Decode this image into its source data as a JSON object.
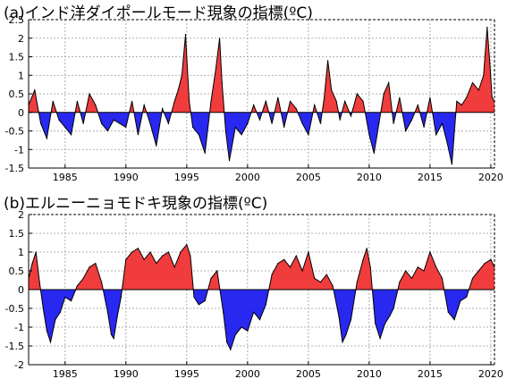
{
  "chart_data": [
    {
      "type": "area",
      "title": "(a)インド洋ダイポールモード現象の指標(ºC)",
      "xlabel": "",
      "ylabel": "",
      "xlim": [
        1982,
        2020.3
      ],
      "ylim": [
        -1.5,
        2.5
      ],
      "yticks": [
        "-1.5",
        "-1",
        "-0.5",
        "0",
        "0.5",
        "1",
        "1.5",
        "2",
        "2.5"
      ],
      "xticks": [
        "1985",
        "1990",
        "1995",
        "2000",
        "2005",
        "2010",
        "2015",
        "2020"
      ],
      "grid": true,
      "positive_color": "#f03c3c",
      "negative_color": "#2828f0",
      "x": [
        1982.0,
        1982.5,
        1983.0,
        1983.5,
        1984.0,
        1984.5,
        1985.0,
        1985.5,
        1986.0,
        1986.5,
        1987.0,
        1987.5,
        1988.0,
        1988.5,
        1989.0,
        1989.5,
        1990.0,
        1990.5,
        1991.0,
        1991.5,
        1992.0,
        1992.5,
        1993.0,
        1993.5,
        1994.0,
        1994.3,
        1994.6,
        1994.9,
        1995.2,
        1995.5,
        1996.0,
        1996.5,
        1997.0,
        1997.4,
        1997.7,
        1997.9,
        1998.2,
        1998.5,
        1999.0,
        1999.5,
        2000.0,
        2000.5,
        2001.0,
        2001.5,
        2002.0,
        2002.5,
        2003.0,
        2003.5,
        2004.0,
        2004.5,
        2005.0,
        2005.5,
        2006.0,
        2006.3,
        2006.6,
        2006.9,
        2007.3,
        2007.6,
        2008.0,
        2008.5,
        2009.0,
        2009.5,
        2010.0,
        2010.4,
        2010.8,
        2011.2,
        2011.6,
        2012.0,
        2012.5,
        2013.0,
        2013.5,
        2014.0,
        2014.5,
        2015.0,
        2015.5,
        2016.0,
        2016.4,
        2016.8,
        2017.2,
        2017.6,
        2018.0,
        2018.5,
        2019.0,
        2019.4,
        2019.7,
        2019.9,
        2020.1,
        2020.3
      ],
      "values": [
        0.2,
        0.6,
        -0.3,
        -0.7,
        0.3,
        -0.2,
        -0.4,
        -0.6,
        0.3,
        -0.3,
        0.5,
        0.2,
        -0.3,
        -0.5,
        -0.2,
        -0.3,
        -0.4,
        0.3,
        -0.6,
        0.2,
        -0.3,
        -0.9,
        0.1,
        -0.3,
        0.3,
        0.6,
        1.0,
        2.1,
        0.3,
        -0.4,
        -0.6,
        -1.1,
        0.3,
        1.2,
        2.0,
        0.8,
        -0.5,
        -1.3,
        -0.4,
        -0.6,
        -0.3,
        0.2,
        -0.2,
        0.3,
        -0.3,
        0.4,
        -0.4,
        0.3,
        0.1,
        -0.3,
        -0.6,
        0.2,
        -0.3,
        0.4,
        1.4,
        0.6,
        0.3,
        -0.2,
        0.3,
        -0.1,
        0.5,
        0.3,
        -0.6,
        -1.1,
        -0.3,
        0.5,
        0.8,
        -0.3,
        0.4,
        -0.5,
        -0.2,
        0.2,
        -0.4,
        0.4,
        -0.6,
        -0.3,
        -0.8,
        -1.4,
        0.3,
        0.2,
        0.4,
        0.8,
        0.6,
        1.0,
        2.3,
        1.4,
        0.4,
        0.3
      ]
    },
    {
      "type": "area",
      "title": "(b)エルニーニョモドキ現象の指標(ºC)",
      "xlabel": "",
      "ylabel": "",
      "xlim": [
        1982,
        2020.3
      ],
      "ylim": [
        -2,
        2
      ],
      "yticks": [
        "-2",
        "-1.5",
        "-1",
        "-0.5",
        "0",
        "0.5",
        "1",
        "1.5",
        "2"
      ],
      "xticks": [
        "1985",
        "1990",
        "1995",
        "2000",
        "2005",
        "2010",
        "2015",
        "2020"
      ],
      "grid": true,
      "positive_color": "#f03c3c",
      "negative_color": "#2828f0",
      "x": [
        1982.0,
        1982.3,
        1982.6,
        1982.9,
        1983.2,
        1983.5,
        1983.8,
        1984.2,
        1984.6,
        1985.0,
        1985.5,
        1986.0,
        1986.5,
        1987.0,
        1987.5,
        1988.0,
        1988.5,
        1988.8,
        1989.0,
        1989.3,
        1989.6,
        1990.0,
        1990.5,
        1991.0,
        1991.5,
        1992.0,
        1992.5,
        1993.0,
        1993.5,
        1994.0,
        1994.5,
        1995.0,
        1995.3,
        1995.6,
        1996.0,
        1996.5,
        1997.0,
        1997.5,
        1998.0,
        1998.3,
        1998.6,
        1999.0,
        1999.5,
        2000.0,
        2000.5,
        2001.0,
        2001.5,
        2002.0,
        2002.5,
        2003.0,
        2003.5,
        2004.0,
        2004.5,
        2005.0,
        2005.5,
        2006.0,
        2006.5,
        2007.0,
        2007.5,
        2007.8,
        2008.1,
        2008.5,
        2009.0,
        2009.5,
        2009.8,
        2010.1,
        2010.5,
        2010.9,
        2011.3,
        2011.7,
        2012.0,
        2012.5,
        2013.0,
        2013.5,
        2014.0,
        2014.5,
        2015.0,
        2015.5,
        2016.0,
        2016.5,
        2017.0,
        2017.5,
        2018.0,
        2018.5,
        2019.0,
        2019.5,
        2020.0,
        2020.3
      ],
      "values": [
        0.3,
        0.7,
        1.0,
        0.2,
        -0.5,
        -1.1,
        -1.4,
        -0.8,
        -0.6,
        -0.2,
        -0.3,
        0.1,
        0.3,
        0.6,
        0.7,
        0.2,
        -0.6,
        -1.2,
        -1.3,
        -0.7,
        -0.2,
        0.8,
        1.0,
        1.1,
        0.8,
        1.0,
        0.7,
        0.9,
        1.0,
        0.6,
        1.0,
        1.2,
        0.9,
        -0.2,
        -0.4,
        -0.3,
        0.3,
        0.5,
        -0.6,
        -1.4,
        -1.6,
        -1.2,
        -1.0,
        -1.1,
        -0.6,
        -0.8,
        -0.4,
        0.4,
        0.7,
        0.8,
        0.6,
        0.9,
        0.5,
        1.0,
        0.3,
        0.2,
        0.4,
        0.1,
        -0.7,
        -1.4,
        -1.2,
        -0.8,
        0.2,
        0.8,
        1.1,
        0.6,
        -0.9,
        -1.3,
        -0.9,
        -0.7,
        -0.5,
        0.2,
        0.5,
        0.3,
        0.6,
        0.5,
        1.0,
        0.6,
        0.3,
        -0.6,
        -0.8,
        -0.3,
        -0.2,
        0.3,
        0.5,
        0.7,
        0.8,
        0.6
      ]
    }
  ]
}
